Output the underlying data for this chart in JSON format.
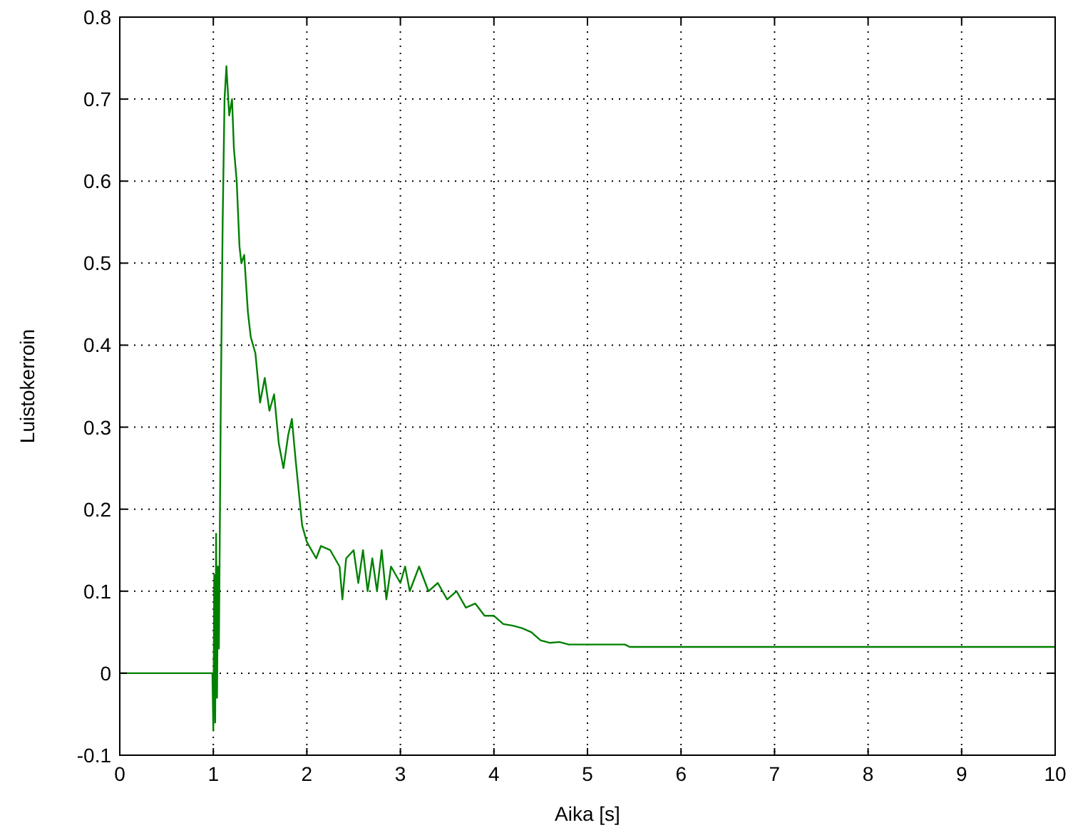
{
  "chart_data": {
    "type": "line",
    "xlabel": "Aika [s]",
    "ylabel": "Luistokerroin",
    "xlim": [
      0,
      10
    ],
    "ylim": [
      -0.1,
      0.8
    ],
    "xticks": [
      0,
      1,
      2,
      3,
      4,
      5,
      6,
      7,
      8,
      9,
      10
    ],
    "yticks": [
      -0.1,
      0,
      0.1,
      0.2,
      0.3,
      0.4,
      0.5,
      0.6,
      0.7,
      0.8
    ],
    "grid": true,
    "line_style": "solid",
    "marker": "none",
    "series": [
      {
        "color": "#008000",
        "x": [
          0,
          0.5,
          0.99,
          1.0,
          1.01,
          1.02,
          1.03,
          1.04,
          1.05,
          1.06,
          1.08,
          1.1,
          1.12,
          1.14,
          1.17,
          1.2,
          1.22,
          1.25,
          1.28,
          1.3,
          1.33,
          1.37,
          1.4,
          1.45,
          1.5,
          1.55,
          1.6,
          1.65,
          1.7,
          1.75,
          1.8,
          1.84,
          1.88,
          1.95,
          2.0,
          2.1,
          2.15,
          2.25,
          2.35,
          2.38,
          2.42,
          2.5,
          2.55,
          2.6,
          2.65,
          2.7,
          2.75,
          2.8,
          2.85,
          2.9,
          3.0,
          3.05,
          3.1,
          3.2,
          3.3,
          3.4,
          3.5,
          3.6,
          3.7,
          3.8,
          3.9,
          4.0,
          4.1,
          4.2,
          4.3,
          4.4,
          4.5,
          4.6,
          4.7,
          4.8,
          5.0,
          5.4,
          5.45,
          10
        ],
        "values": [
          0,
          0,
          0,
          -0.07,
          0.12,
          -0.06,
          0.17,
          -0.03,
          0.13,
          0.03,
          0.33,
          0.55,
          0.7,
          0.74,
          0.68,
          0.7,
          0.64,
          0.6,
          0.52,
          0.5,
          0.51,
          0.44,
          0.41,
          0.39,
          0.33,
          0.36,
          0.32,
          0.34,
          0.28,
          0.25,
          0.29,
          0.31,
          0.26,
          0.18,
          0.16,
          0.14,
          0.155,
          0.15,
          0.13,
          0.09,
          0.14,
          0.15,
          0.11,
          0.15,
          0.1,
          0.14,
          0.1,
          0.15,
          0.09,
          0.13,
          0.11,
          0.13,
          0.1,
          0.13,
          0.1,
          0.11,
          0.09,
          0.1,
          0.08,
          0.085,
          0.07,
          0.07,
          0.06,
          0.058,
          0.055,
          0.05,
          0.04,
          0.037,
          0.038,
          0.035,
          0.035,
          0.035,
          0.032,
          0.032
        ]
      }
    ]
  }
}
